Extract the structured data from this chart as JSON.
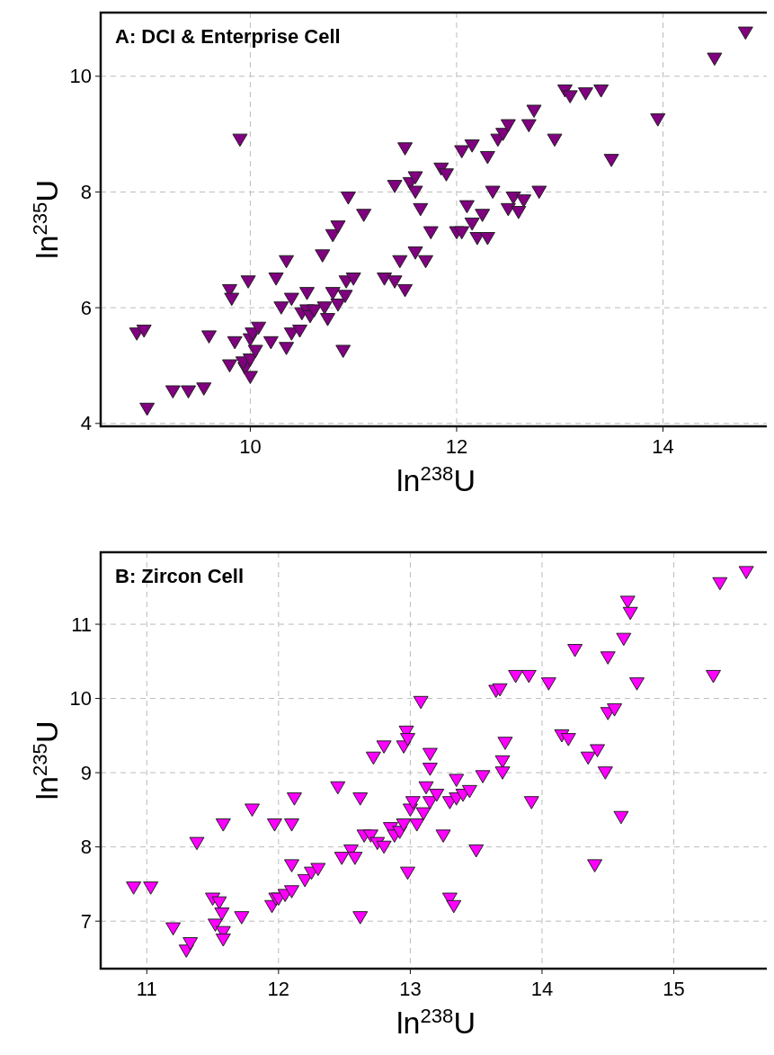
{
  "chart_data": [
    {
      "type": "scatter",
      "title": "A: DCI & Enterprise Cell",
      "xlabel": "ln$^{238}$U",
      "ylabel": "ln$^{235}$U",
      "xlim": [
        8.55,
        15.05
      ],
      "ylim": [
        3.95,
        11.1
      ],
      "xticks": [
        10,
        12,
        14
      ],
      "yticks": [
        4,
        6,
        8,
        10
      ],
      "grid": true,
      "marker": "triangle",
      "color": "#800080",
      "x": [
        8.9,
        8.97,
        9.0,
        9.25,
        9.4,
        9.55,
        9.6,
        9.8,
        9.82,
        9.8,
        9.85,
        9.95,
        9.93,
        10.0,
        10.0,
        10.0,
        10.02,
        10.05,
        10.08,
        9.98,
        10.2,
        10.25,
        10.3,
        10.35,
        10.35,
        10.4,
        10.4,
        10.48,
        10.5,
        10.55,
        10.55,
        10.58,
        10.62,
        10.7,
        10.72,
        10.75,
        10.8,
        10.8,
        10.85,
        10.85,
        10.9,
        10.92,
        10.95,
        10.93,
        11.0,
        11.1,
        11.3,
        11.4,
        11.45,
        11.5,
        9.9,
        11.4,
        11.5,
        11.55,
        11.6,
        11.6,
        11.65,
        11.7,
        11.75,
        11.6,
        11.85,
        11.9,
        12.05,
        12.15,
        12.0,
        12.05,
        12.1,
        12.15,
        12.2,
        12.25,
        12.3,
        12.35,
        12.3,
        12.4,
        12.45,
        12.5,
        12.5,
        12.55,
        12.65,
        12.7,
        12.75,
        12.8,
        12.95,
        12.6,
        13.05,
        13.1,
        13.25,
        13.4,
        13.5,
        13.95,
        14.5,
        14.8
      ],
      "values": [
        5.55,
        5.6,
        4.25,
        4.55,
        4.55,
        4.6,
        5.5,
        6.3,
        6.15,
        5.0,
        5.4,
        4.95,
        5.05,
        5.1,
        4.8,
        5.45,
        5.55,
        5.25,
        5.65,
        6.45,
        5.4,
        6.5,
        6.0,
        6.8,
        5.3,
        6.15,
        5.55,
        5.6,
        5.9,
        6.25,
        5.95,
        5.85,
        5.95,
        6.9,
        6.0,
        5.8,
        7.25,
        6.25,
        7.4,
        6.05,
        5.25,
        6.2,
        7.9,
        6.45,
        6.5,
        7.6,
        6.5,
        6.45,
        6.8,
        6.3,
        8.9,
        8.1,
        8.75,
        8.15,
        8.25,
        8.0,
        7.7,
        6.8,
        7.3,
        6.95,
        8.4,
        8.3,
        8.7,
        8.8,
        7.3,
        7.3,
        7.75,
        7.45,
        7.2,
        7.6,
        7.2,
        8.0,
        8.6,
        8.9,
        9.0,
        9.15,
        7.7,
        7.9,
        7.85,
        9.15,
        9.4,
        8.0,
        8.9,
        7.65,
        9.75,
        9.65,
        9.7,
        9.75,
        8.55,
        9.25,
        10.3,
        10.75
      ]
    },
    {
      "type": "scatter",
      "title": "B: Zircon Cell",
      "xlabel": "ln$^{238}$U",
      "ylabel": "ln$^{235}$U",
      "xlim": [
        10.65,
        15.74
      ],
      "ylim": [
        6.36,
        11.97
      ],
      "xticks": [
        11,
        12,
        13,
        14,
        15
      ],
      "yticks": [
        7,
        8,
        9,
        10,
        11
      ],
      "grid": true,
      "marker": "triangle",
      "color": "#ff00ff",
      "x": [
        10.9,
        11.03,
        11.2,
        11.3,
        11.33,
        11.38,
        11.5,
        11.52,
        11.55,
        11.57,
        11.58,
        11.58,
        11.58,
        11.72,
        11.8,
        11.95,
        11.97,
        11.98,
        12.0,
        12.05,
        12.1,
        12.1,
        12.12,
        12.1,
        12.2,
        12.25,
        12.3,
        12.45,
        12.48,
        12.55,
        12.58,
        12.62,
        12.62,
        12.65,
        12.7,
        12.72,
        12.75,
        12.8,
        12.8,
        12.85,
        12.88,
        12.92,
        12.95,
        12.95,
        12.97,
        12.98,
        12.98,
        13.0,
        13.02,
        13.05,
        13.08,
        13.1,
        13.12,
        13.15,
        13.15,
        13.15,
        13.2,
        13.25,
        13.3,
        13.3,
        13.33,
        13.35,
        13.35,
        13.4,
        13.45,
        13.5,
        13.55,
        13.65,
        13.68,
        13.7,
        13.7,
        13.72,
        13.8,
        13.9,
        13.92,
        14.05,
        14.15,
        14.2,
        14.25,
        14.35,
        14.4,
        14.42,
        14.48,
        14.5,
        14.5,
        14.55,
        14.6,
        14.62,
        14.65,
        14.67,
        14.72,
        15.3,
        15.35,
        15.55
      ],
      "values": [
        7.45,
        7.45,
        6.9,
        6.6,
        6.7,
        8.05,
        7.3,
        6.95,
        7.25,
        7.1,
        6.85,
        6.75,
        8.3,
        7.05,
        8.5,
        7.2,
        8.3,
        7.3,
        7.3,
        7.35,
        7.4,
        8.3,
        8.65,
        7.75,
        7.55,
        7.65,
        7.7,
        8.8,
        7.85,
        7.95,
        7.85,
        7.05,
        8.65,
        8.15,
        8.15,
        9.2,
        8.05,
        9.35,
        8.0,
        8.25,
        8.15,
        8.2,
        8.3,
        9.35,
        9.55,
        9.45,
        7.65,
        8.5,
        8.6,
        8.3,
        9.95,
        8.45,
        8.8,
        9.25,
        9.05,
        8.6,
        8.7,
        8.15,
        8.6,
        7.3,
        7.2,
        8.65,
        8.9,
        8.7,
        8.75,
        7.95,
        8.95,
        10.1,
        10.12,
        9.15,
        9.0,
        9.4,
        10.3,
        10.3,
        8.6,
        10.2,
        9.5,
        9.45,
        10.65,
        9.2,
        7.75,
        9.3,
        9.0,
        9.8,
        10.55,
        9.85,
        8.4,
        10.8,
        11.3,
        11.15,
        10.2,
        10.3,
        11.55,
        11.7
      ]
    }
  ]
}
